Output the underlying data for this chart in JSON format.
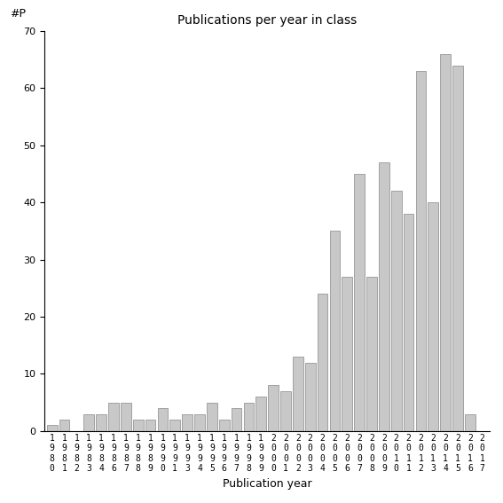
{
  "years": [
    "1980",
    "1981",
    "1982",
    "1983",
    "1984",
    "1986",
    "1987",
    "1988",
    "1989",
    "1990",
    "1991",
    "1993",
    "1994",
    "1995",
    "1996",
    "1997",
    "1998",
    "1999",
    "2000",
    "2001",
    "2002",
    "2003",
    "2004",
    "2005",
    "2006",
    "2007",
    "2008",
    "2009",
    "2010",
    "2011",
    "2012",
    "2013",
    "2014",
    "2015",
    "2016",
    "2017"
  ],
  "values": [
    1,
    2,
    0,
    3,
    3,
    5,
    5,
    2,
    2,
    4,
    2,
    3,
    3,
    5,
    2,
    4,
    5,
    6,
    8,
    7,
    13,
    12,
    24,
    35,
    27,
    45,
    27,
    47,
    42,
    38,
    63,
    40,
    66,
    64,
    3,
    0
  ],
  "title": "Publications per year in class",
  "xlabel": "Publication year",
  "ylabel": "#P",
  "ylim": [
    0,
    70
  ],
  "yticks": [
    0,
    10,
    20,
    30,
    40,
    50,
    60,
    70
  ],
  "bar_color": "#c8c8c8",
  "bar_edge_color": "#888888",
  "bg_color": "#ffffff"
}
